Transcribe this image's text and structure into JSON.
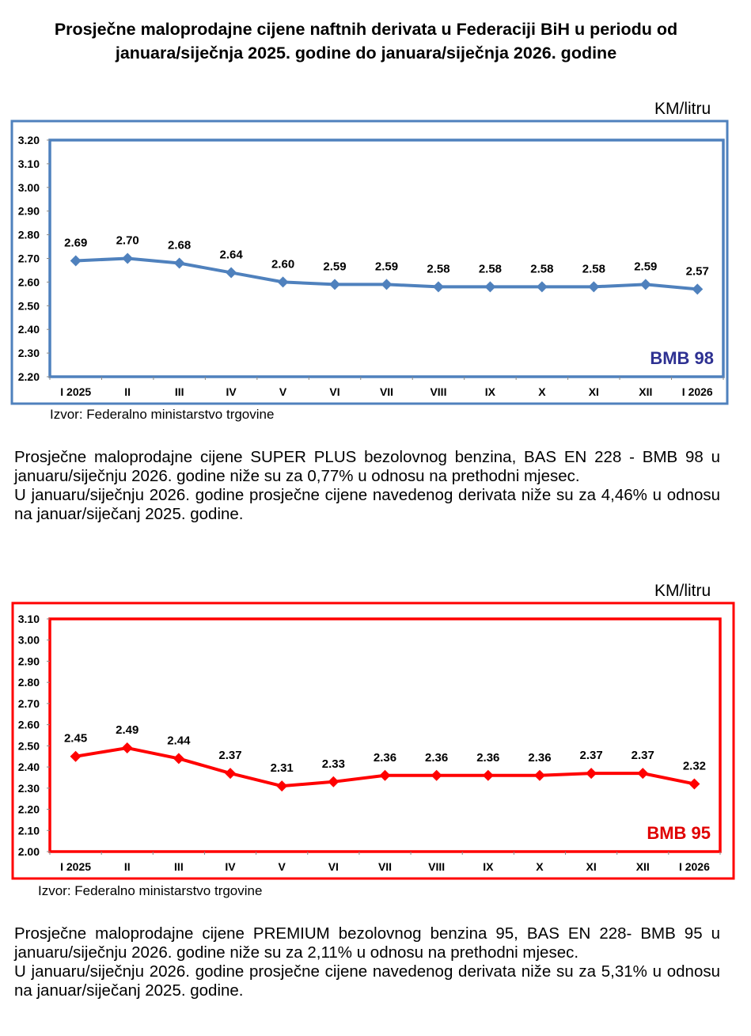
{
  "title_line1": "Prosječne maloprodajne cijene naftnih derivata u Federaciji BiH u periodu od",
  "title_line2": "januara/siječnja 2025. godine do januara/siječnja 2026. godine",
  "chart_data": [
    {
      "type": "line",
      "title": "BMB 98",
      "unit": "KM/litru",
      "source": "Izvor: Federalno ministarstvo trgovine",
      "categories": [
        "I 2025",
        "II",
        "III",
        "IV",
        "V",
        "VI",
        "VII",
        "VIII",
        "IX",
        "X",
        "XI",
        "XII",
        "I 2026"
      ],
      "values": [
        2.69,
        2.7,
        2.68,
        2.64,
        2.6,
        2.59,
        2.59,
        2.58,
        2.58,
        2.58,
        2.58,
        2.59,
        2.57
      ],
      "value_labels": [
        "2.69",
        "2.70",
        "2.68",
        "2.64",
        "2.60",
        "2.59",
        "2.59",
        "2.58",
        "2.58",
        "2.58",
        "2.58",
        "2.59",
        "2.57"
      ],
      "ylim": [
        2.2,
        3.2
      ],
      "yticks": [
        "2.20",
        "2.30",
        "2.40",
        "2.50",
        "2.60",
        "2.70",
        "2.80",
        "2.90",
        "3.00",
        "3.10",
        "3.20"
      ],
      "color": "#4F81BD",
      "label_color": "#2E3192",
      "frame_color": "#4F81BD",
      "grid": false
    },
    {
      "type": "line",
      "title": "BMB 95",
      "unit": "KM/litru",
      "source": "Izvor: Federalno ministarstvo trgovine",
      "categories": [
        "I 2025",
        "II",
        "III",
        "IV",
        "V",
        "VI",
        "VII",
        "VIII",
        "IX",
        "X",
        "XI",
        "XII",
        "I 2026"
      ],
      "values": [
        2.45,
        2.49,
        2.44,
        2.37,
        2.31,
        2.33,
        2.36,
        2.36,
        2.36,
        2.36,
        2.37,
        2.37,
        2.32
      ],
      "value_labels": [
        "2.45",
        "2.49",
        "2.44",
        "2.37",
        "2.31",
        "2.33",
        "2.36",
        "2.36",
        "2.36",
        "2.36",
        "2.37",
        "2.37",
        "2.32"
      ],
      "ylim": [
        2.0,
        3.1
      ],
      "yticks": [
        "2.00",
        "2.10",
        "2.20",
        "2.30",
        "2.40",
        "2.50",
        "2.60",
        "2.70",
        "2.80",
        "2.90",
        "3.00",
        "3.10"
      ],
      "color": "#FF0000",
      "label_color": "#E00000",
      "frame_color": "#FF0000",
      "grid": false
    }
  ],
  "text1": {
    "p1": "Prosječne maloprodajne cijene SUPER PLUS bezolovnog benzina, BAS EN 228 - BMB 98 u januaru/siječnju 2026. godine niže su za 0,77% u odnosu na prethodni mjesec.",
    "p2": "U januaru/siječnju 2026. godine prosječne cijene navedenog derivata niže su za 4,46% u odnosu na januar/siječanj 2025. godine."
  },
  "text2": {
    "p1": "Prosječne maloprodajne cijene PREMIUM bezolovnog benzina 95, BAS EN 228- BMB 95 u januaru/siječnju 2026. godine niže su za 2,11% u odnosu na prethodni mjesec.",
    "p2": "U januaru/siječnju 2026. godine prosječne cijene navedenog derivata niže su za 5,31% u odnosu na januar/siječanj 2025. godine."
  }
}
